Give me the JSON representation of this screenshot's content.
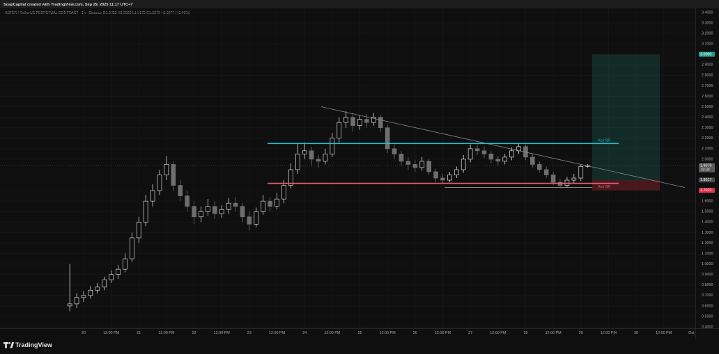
{
  "chart_data": {
    "type": "candlestick",
    "title": "SoapCapital created with TradingView.com, Sep 29, 2025 11:17 UTC+7",
    "subtitle": "ASTER / TetherUS PERPETUAL CONTRACT · 1h · Binance  O1.9303  H1.9528  L1.9175  C1.9379  +0.0077 (+0.40%)",
    "brand": "TradingView",
    "up_color": "#d9d9d9",
    "down_color": "#6e6e6e",
    "grid": true,
    "xlim": [
      -36.3,
      265.7
    ],
    "ylim": [
      0.387,
      3.439
    ],
    "xticks": [
      {
        "value": 0,
        "label": "20"
      },
      {
        "value": 12,
        "label": "12:00 PM"
      },
      {
        "value": 24,
        "label": "21"
      },
      {
        "value": 36,
        "label": "12:00 PM"
      },
      {
        "value": 48,
        "label": "22"
      },
      {
        "value": 60,
        "label": "12:00 PM"
      },
      {
        "value": 72,
        "label": "23"
      },
      {
        "value": 84,
        "label": "12:00 PM"
      },
      {
        "value": 96,
        "label": "24"
      },
      {
        "value": 108,
        "label": "12:00 PM"
      },
      {
        "value": 120,
        "label": "25"
      },
      {
        "value": 132,
        "label": "12:00 PM"
      },
      {
        "value": 144,
        "label": "26"
      },
      {
        "value": 156,
        "label": "12:00 PM"
      },
      {
        "value": 168,
        "label": "27"
      },
      {
        "value": 180,
        "label": "12:00 PM"
      },
      {
        "value": 192,
        "label": "28"
      },
      {
        "value": 204,
        "label": "12:00 PM"
      },
      {
        "value": 216,
        "label": "29"
      },
      {
        "value": 228,
        "label": "12:00 PM"
      },
      {
        "value": 240,
        "label": "30"
      },
      {
        "value": 252,
        "label": "12:00 PM"
      },
      {
        "value": 264,
        "label": "Oct"
      }
    ],
    "yticks": [
      {
        "value": 0.4,
        "label": "0.4000"
      },
      {
        "value": 0.5,
        "label": "0.5000"
      },
      {
        "value": 0.6,
        "label": "0.6000"
      },
      {
        "value": 0.7,
        "label": "0.7000"
      },
      {
        "value": 0.8,
        "label": "0.8000"
      },
      {
        "value": 0.9,
        "label": "0.9000"
      },
      {
        "value": 1.0,
        "label": "1.0000"
      },
      {
        "value": 1.1,
        "label": "1.1000"
      },
      {
        "value": 1.2,
        "label": "1.2000"
      },
      {
        "value": 1.3,
        "label": "1.3000"
      },
      {
        "value": 1.4,
        "label": "1.4000"
      },
      {
        "value": 1.5,
        "label": "1.5000"
      },
      {
        "value": 1.6,
        "label": "1.6000"
      },
      {
        "value": 1.7,
        "label": "1.7000"
      },
      {
        "value": 2.0,
        "label": "2.0000"
      },
      {
        "value": 2.1,
        "label": "2.1000"
      },
      {
        "value": 2.2,
        "label": "2.2000"
      },
      {
        "value": 2.3,
        "label": "2.3000"
      },
      {
        "value": 2.4,
        "label": "2.4000"
      },
      {
        "value": 2.5,
        "label": "2.5000"
      },
      {
        "value": 2.6,
        "label": "2.6000"
      },
      {
        "value": 2.7,
        "label": "2.7000"
      },
      {
        "value": 2.8,
        "label": "2.8000"
      },
      {
        "value": 2.9,
        "label": "2.9000"
      },
      {
        "value": 3.1,
        "label": "3.1000"
      },
      {
        "value": 3.2,
        "label": "3.2000"
      },
      {
        "value": 3.3,
        "label": "3.3000"
      },
      {
        "value": 3.4,
        "label": "3.4000"
      }
    ],
    "x": [
      -6,
      -3,
      0,
      3,
      6,
      9,
      12,
      15,
      18,
      21,
      24,
      27,
      30,
      33,
      36,
      39,
      42,
      45,
      48,
      51,
      54,
      57,
      60,
      63,
      66,
      69,
      72,
      75,
      78,
      81,
      84,
      87,
      90,
      93,
      96,
      99,
      102,
      105,
      108,
      111,
      114,
      117,
      120,
      123,
      126,
      129,
      132,
      135,
      138,
      141,
      144,
      147,
      150,
      153,
      156,
      159,
      162,
      165,
      168,
      171,
      174,
      177,
      180,
      183,
      186,
      189,
      192,
      195,
      198,
      201,
      204,
      207,
      210,
      213,
      216,
      219
    ],
    "candles": [
      [
        0.6,
        1.0,
        0.55,
        0.62
      ],
      [
        0.62,
        0.72,
        0.58,
        0.68
      ],
      [
        0.68,
        0.74,
        0.64,
        0.7
      ],
      [
        0.7,
        0.79,
        0.67,
        0.75
      ],
      [
        0.75,
        0.82,
        0.72,
        0.78
      ],
      [
        0.78,
        0.88,
        0.75,
        0.85
      ],
      [
        0.85,
        0.94,
        0.82,
        0.9
      ],
      [
        0.9,
        0.99,
        0.86,
        0.95
      ],
      [
        0.95,
        1.1,
        0.92,
        1.05
      ],
      [
        1.05,
        1.3,
        1.02,
        1.25
      ],
      [
        1.25,
        1.45,
        1.2,
        1.4
      ],
      [
        1.4,
        1.66,
        1.36,
        1.6
      ],
      [
        1.6,
        1.76,
        1.55,
        1.7
      ],
      [
        1.7,
        1.9,
        1.66,
        1.85
      ],
      [
        1.85,
        2.03,
        1.8,
        1.95
      ],
      [
        1.95,
        1.98,
        1.7,
        1.75
      ],
      [
        1.75,
        1.8,
        1.6,
        1.65
      ],
      [
        1.65,
        1.7,
        1.5,
        1.55
      ],
      [
        1.55,
        1.6,
        1.38,
        1.45
      ],
      [
        1.45,
        1.55,
        1.4,
        1.5
      ],
      [
        1.5,
        1.62,
        1.46,
        1.55
      ],
      [
        1.55,
        1.6,
        1.43,
        1.48
      ],
      [
        1.48,
        1.56,
        1.44,
        1.52
      ],
      [
        1.52,
        1.63,
        1.48,
        1.58
      ],
      [
        1.58,
        1.64,
        1.5,
        1.55
      ],
      [
        1.55,
        1.58,
        1.4,
        1.45
      ],
      [
        1.45,
        1.5,
        1.32,
        1.38
      ],
      [
        1.38,
        1.54,
        1.35,
        1.5
      ],
      [
        1.5,
        1.66,
        1.47,
        1.6
      ],
      [
        1.6,
        1.64,
        1.5,
        1.55
      ],
      [
        1.55,
        1.68,
        1.52,
        1.62
      ],
      [
        1.62,
        1.8,
        1.58,
        1.75
      ],
      [
        1.75,
        1.96,
        1.72,
        1.9
      ],
      [
        1.9,
        2.15,
        1.86,
        2.05
      ],
      [
        2.05,
        2.16,
        2.0,
        2.08
      ],
      [
        2.08,
        2.12,
        1.94,
        2.0
      ],
      [
        2.0,
        2.04,
        1.92,
        1.98
      ],
      [
        1.98,
        2.1,
        1.95,
        2.05
      ],
      [
        2.05,
        2.25,
        2.02,
        2.2
      ],
      [
        2.2,
        2.4,
        2.16,
        2.35
      ],
      [
        2.35,
        2.46,
        2.3,
        2.4
      ],
      [
        2.4,
        2.44,
        2.26,
        2.32
      ],
      [
        2.32,
        2.42,
        2.28,
        2.38
      ],
      [
        2.38,
        2.43,
        2.3,
        2.35
      ],
      [
        2.35,
        2.44,
        2.32,
        2.4
      ],
      [
        2.4,
        2.42,
        2.26,
        2.3
      ],
      [
        2.3,
        2.33,
        2.06,
        2.1
      ],
      [
        2.1,
        2.14,
        2.0,
        2.05
      ],
      [
        2.05,
        2.08,
        1.94,
        1.98
      ],
      [
        1.98,
        2.02,
        1.9,
        1.95
      ],
      [
        1.95,
        1.99,
        1.88,
        1.92
      ],
      [
        1.92,
        2.02,
        1.89,
        1.98
      ],
      [
        1.98,
        2.0,
        1.85,
        1.88
      ],
      [
        1.88,
        1.91,
        1.78,
        1.82
      ],
      [
        1.82,
        1.86,
        1.77,
        1.8
      ],
      [
        1.8,
        1.88,
        1.78,
        1.85
      ],
      [
        1.85,
        1.93,
        1.82,
        1.9
      ],
      [
        1.9,
        2.04,
        1.87,
        2.0
      ],
      [
        2.0,
        2.14,
        1.97,
        2.1
      ],
      [
        2.1,
        2.14,
        2.04,
        2.08
      ],
      [
        2.08,
        2.12,
        2.01,
        2.05
      ],
      [
        2.05,
        2.08,
        1.96,
        2.0
      ],
      [
        2.0,
        2.03,
        1.94,
        1.98
      ],
      [
        1.98,
        2.05,
        1.95,
        2.02
      ],
      [
        2.02,
        2.11,
        1.99,
        2.08
      ],
      [
        2.08,
        2.15,
        2.05,
        2.12
      ],
      [
        2.12,
        2.14,
        1.99,
        2.02
      ],
      [
        2.02,
        2.05,
        1.92,
        1.95
      ],
      [
        1.95,
        1.98,
        1.87,
        1.9
      ],
      [
        1.9,
        1.93,
        1.82,
        1.85
      ],
      [
        1.85,
        1.88,
        1.75,
        1.78
      ],
      [
        1.78,
        1.81,
        1.72,
        1.75
      ],
      [
        1.75,
        1.83,
        1.73,
        1.8
      ],
      [
        1.8,
        1.86,
        1.77,
        1.82
      ],
      [
        1.82,
        1.95,
        1.79,
        1.93
      ],
      [
        1.9303,
        1.9528,
        1.9175,
        1.9379
      ]
    ],
    "lines": [
      {
        "x": [
          103.2,
          261.2
        ],
        "y": [
          2.5,
          1.73
        ],
        "color": "#8a8a8a"
      },
      {
        "x": [
          79.9,
          232.4
        ],
        "y": [
          2.15,
          2.15
        ],
        "color": "#2fb8cf",
        "label": "Key SR"
      },
      {
        "x": [
          79.9,
          232.4
        ],
        "y": [
          1.77,
          1.77
        ],
        "color": "#f0607a",
        "label": "Key SR"
      },
      {
        "x": [
          156.8,
          221.0
        ],
        "y": [
          1.73,
          1.73
        ],
        "color": "#9a9a9a"
      }
    ],
    "position": {
      "x": [
        220.9,
        250.3
      ],
      "target": 3.0,
      "entry": 1.8017,
      "stop": 1.7022
    },
    "last_price": 1.9379,
    "price_labels": [
      {
        "value": 3.0,
        "label": "3.0000",
        "color": "#1e9e8a"
      },
      {
        "value": 1.9379,
        "label": "1.9379",
        "sub": "42:30",
        "color": "#5a5a5a"
      },
      {
        "value": 1.8017,
        "label": "1.8017",
        "color": "#4a4a4a"
      },
      {
        "value": 1.7022,
        "label": "1.7022",
        "color": "#e0344a"
      }
    ]
  }
}
